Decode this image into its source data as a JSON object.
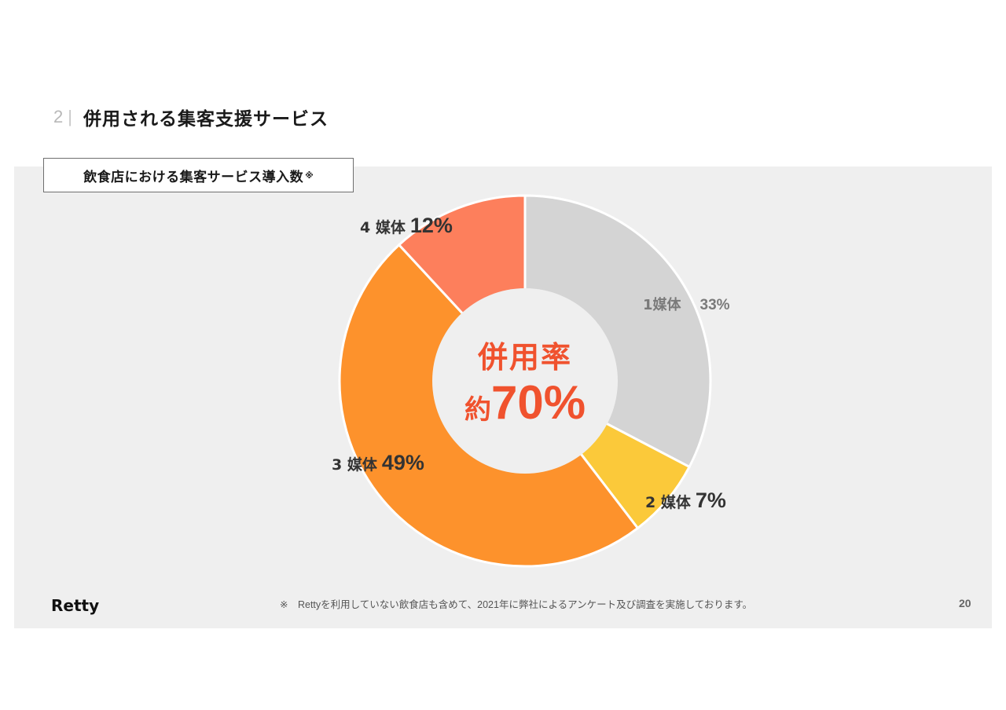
{
  "header": {
    "section_number": "2",
    "separator": "|",
    "title": "併用される集客支援サービス"
  },
  "chart_label": {
    "text": "飲食店における集客サービス導入数",
    "note_mark": "※"
  },
  "center": {
    "title": "併用率",
    "prefix": "約",
    "value": "70%"
  },
  "colors": {
    "slice_1": "#d4d4d4",
    "slice_2": "#fbc93a",
    "slice_3": "#fd922c",
    "slice_4": "#fd7f5c",
    "center_text": "#f0522e",
    "panel_bg": "#efefef"
  },
  "labels": {
    "s1_name": "1媒体",
    "s1_pct": "33%",
    "s2_name": "2 媒体",
    "s2_pct": "7%",
    "s3_name": "3 媒体",
    "s3_pct": "49%",
    "s4_name": "4 媒体",
    "s4_pct": "12%"
  },
  "footer": {
    "brand": "Retty",
    "footnote": "※　Rettyを利用していない飲食店も含めて、2021年に弊社によるアンケート及び調査を実施しております。",
    "page_number": "20"
  },
  "chart_data": {
    "type": "pie",
    "subtype": "donut",
    "title": "飲食店における集客サービス導入数※",
    "categories": [
      "1媒体",
      "2媒体",
      "3媒体",
      "4媒体"
    ],
    "values": [
      33,
      7,
      49,
      12
    ],
    "unit": "%",
    "center_annotation": "併用率 約70%",
    "start_angle": "top, clockwise",
    "legend": "labels placed beside slices",
    "footnote": "※ Rettyを利用していない飲食店も含めて、2021年に弊社によるアンケート及び調査を実施しております。"
  }
}
